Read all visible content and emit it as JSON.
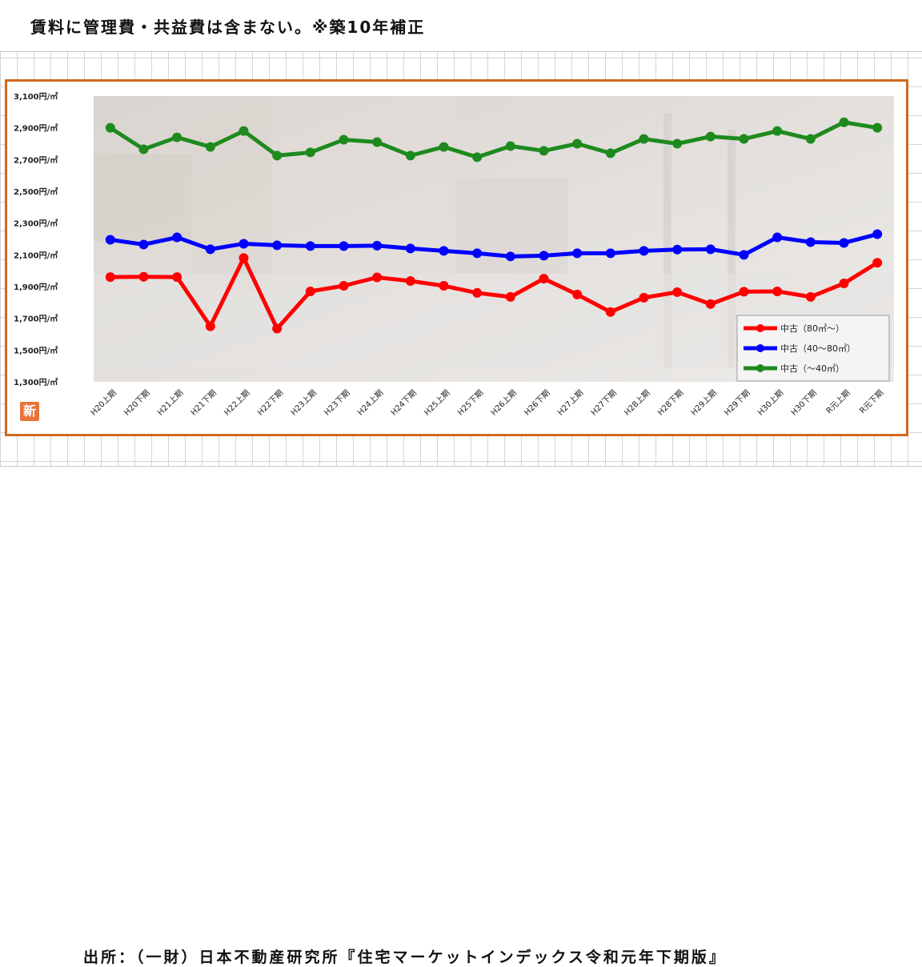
{
  "header": {
    "note": "賃料に管理費・共益費は含まない。※築10年補正"
  },
  "footer": {
    "source": "出所：（一財）日本不動産研究所『住宅マーケットインデックス令和元年下期版』"
  },
  "badge": {
    "label": "新"
  },
  "chart_data": {
    "type": "line",
    "title": "",
    "xlabel": "",
    "ylabel": "",
    "ylim": [
      1300,
      3100
    ],
    "yticks": [
      "3,100円/㎡",
      "2,900円/㎡",
      "2,700円/㎡",
      "2,500円/㎡",
      "2,300円/㎡",
      "2,100円/㎡",
      "1,900円/㎡",
      "1,700円/㎡",
      "1,500円/㎡",
      "1,300円/㎡"
    ],
    "ytick_values": [
      3100,
      2900,
      2700,
      2500,
      2300,
      2100,
      1900,
      1700,
      1500,
      1300
    ],
    "categories": [
      "H20上期",
      "H20下期",
      "H21上期",
      "H21下期",
      "H22上期",
      "H22下期",
      "H23上期",
      "H23下期",
      "H24上期",
      "H24下期",
      "H25上期",
      "H25下期",
      "H26上期",
      "H26下期",
      "H27上期",
      "H27下期",
      "H28上期",
      "H28下期",
      "H29上期",
      "H29下期",
      "H30上期",
      "H30下期",
      "R元上期",
      "R元下期"
    ],
    "legend_position": "bottom-right",
    "series": [
      {
        "name": "中古（80㎡～）",
        "color": "#ff0000",
        "values": [
          1960,
          1962,
          1960,
          1650,
          2080,
          1635,
          1870,
          1905,
          1958,
          1935,
          1905,
          1860,
          1835,
          1950,
          1850,
          1740,
          1830,
          1865,
          1790,
          1868,
          1870,
          1835,
          1920,
          2050
        ]
      },
      {
        "name": "中古（40～80㎡）",
        "color": "#0000ff",
        "values": [
          2195,
          2165,
          2210,
          2135,
          2170,
          2160,
          2155,
          2155,
          2158,
          2140,
          2125,
          2110,
          2090,
          2095,
          2110,
          2110,
          2125,
          2133,
          2135,
          2100,
          2210,
          2180,
          2175,
          2230
        ]
      },
      {
        "name": "中古（～40㎡）",
        "color": "#1e8a1e",
        "values": [
          2900,
          2765,
          2840,
          2780,
          2880,
          2725,
          2745,
          2825,
          2810,
          2725,
          2780,
          2715,
          2785,
          2755,
          2800,
          2740,
          2830,
          2800,
          2845,
          2830,
          2880,
          2830,
          2935,
          2900
        ]
      }
    ]
  }
}
